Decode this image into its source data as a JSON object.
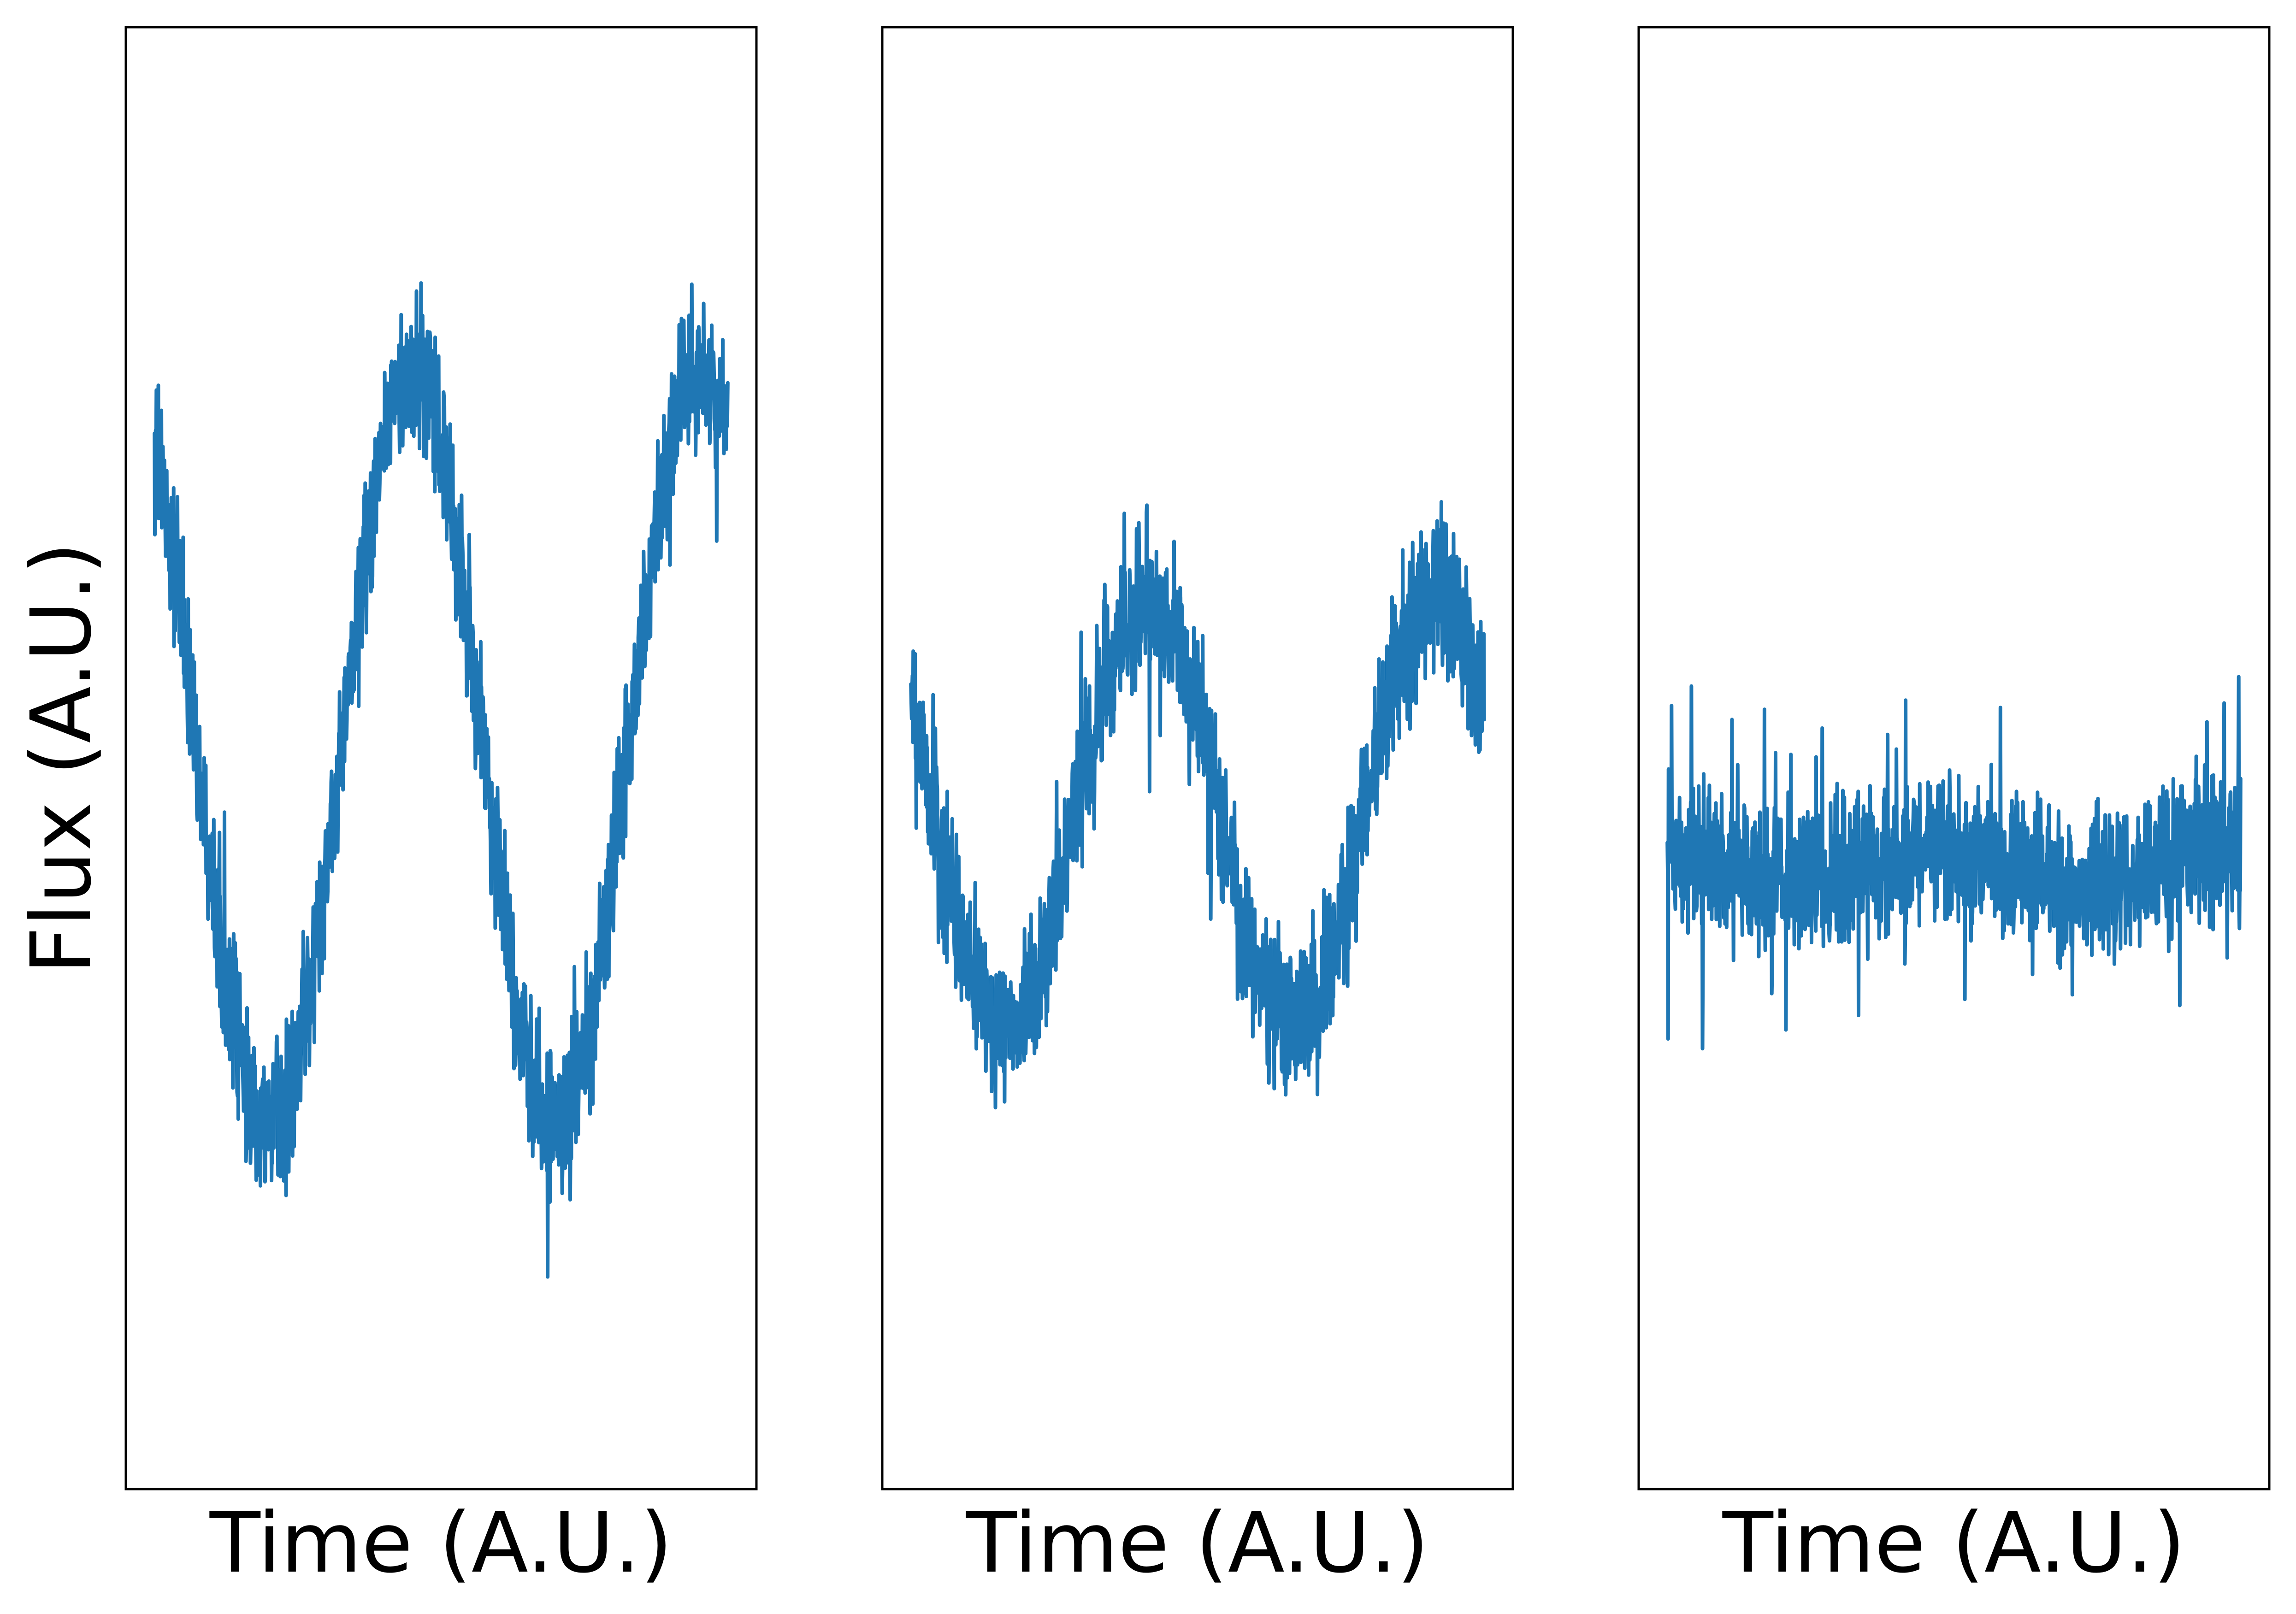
{
  "chart_data": [
    {
      "type": "line",
      "title": "",
      "xlabel": "Time (A.U.)",
      "ylabel": "Flux (A.U.)",
      "ylim": [
        -1.35,
        1.05
      ],
      "xlim": [
        -0.05,
        1.05
      ],
      "grid": false,
      "ticks": "none",
      "series": [
        {
          "color": "#1f77b4",
          "signal": {
            "kind": "sinusoid",
            "periods": 2.0,
            "amplitude": 0.62,
            "phase": 0.35,
            "offset": -0.14
          },
          "noise": {
            "amplitude": 0.18,
            "spikes": 0.07
          },
          "samples": 1500,
          "extremes": {
            "max": 0.63,
            "min": -1.03
          }
        }
      ]
    },
    {
      "type": "line",
      "title": "",
      "xlabel": "Time (A.U.)",
      "ylabel": "",
      "ylim": [
        -1.35,
        1.05
      ],
      "xlim": [
        -0.05,
        1.05
      ],
      "grid": false,
      "ticks": "none",
      "series": [
        {
          "color": "#1f77b4",
          "signal": {
            "kind": "sinusoid",
            "periods": 2.0,
            "amplitude": 0.35,
            "phase": 0.42,
            "offset": -0.24
          },
          "noise": {
            "amplitude": 0.17,
            "spikes": 0.08
          },
          "samples": 1500,
          "extremes": {
            "max": 0.35,
            "min": -0.85
          }
        }
      ]
    },
    {
      "type": "line",
      "title": "",
      "xlabel": "Time (A.U.)",
      "ylabel": "",
      "ylim": [
        -1.35,
        1.05
      ],
      "xlim": [
        -0.05,
        1.05
      ],
      "grid": false,
      "ticks": "none",
      "series": [
        {
          "color": "#1f77b4",
          "signal": {
            "kind": "sinusoid",
            "periods": 2.0,
            "amplitude": 0.03,
            "phase": 0.3,
            "offset": -0.33
          },
          "noise": {
            "amplitude": 0.17,
            "spikes": 0.09
          },
          "samples": 1500,
          "extremes": {
            "max": 0.17,
            "min": -0.9
          }
        }
      ]
    }
  ]
}
